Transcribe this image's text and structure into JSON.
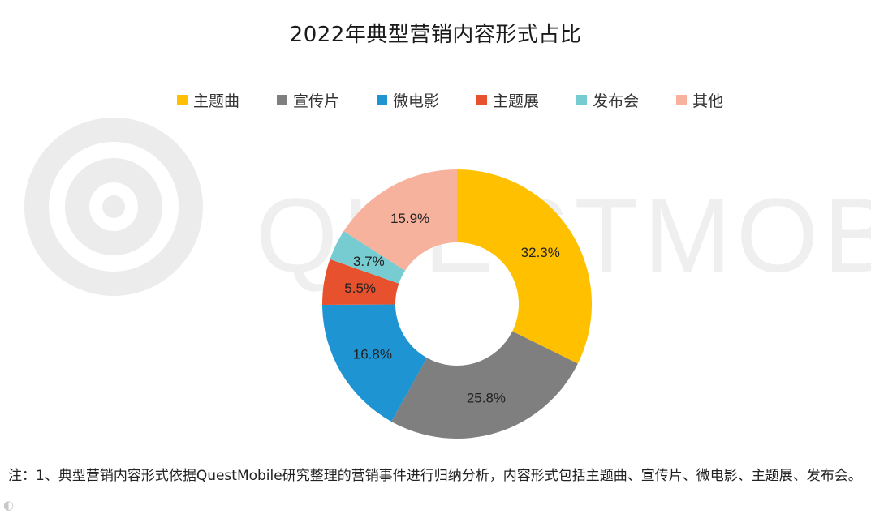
{
  "chart_data": {
    "type": "pie",
    "title": "2022年典型营销内容形式占比",
    "series": [
      {
        "name": "主题曲",
        "value": 32.3,
        "label": "32.3%",
        "color": "#FFC000"
      },
      {
        "name": "宣传片",
        "value": 25.8,
        "label": "25.8%",
        "color": "#7F7F7F"
      },
      {
        "name": "微电影",
        "value": 16.8,
        "label": "16.8%",
        "color": "#1F94D2"
      },
      {
        "name": "主题展",
        "value": 5.5,
        "label": "5.5%",
        "color": "#E8512D"
      },
      {
        "name": "发布会",
        "value": 3.7,
        "label": "3.7%",
        "color": "#77CCD1"
      },
      {
        "name": "其他",
        "value": 15.9,
        "label": "15.9%",
        "color": "#F7B29E"
      }
    ],
    "legend_position": "top",
    "donut": true
  },
  "watermark_text": "QUESTMOBILE",
  "note": "注：1、典型营销内容形式依据QuestMobile研究整理的营销事件进行归纳分析，内容形式包括主题曲、宣传片、微电影、主题展、发布会。"
}
